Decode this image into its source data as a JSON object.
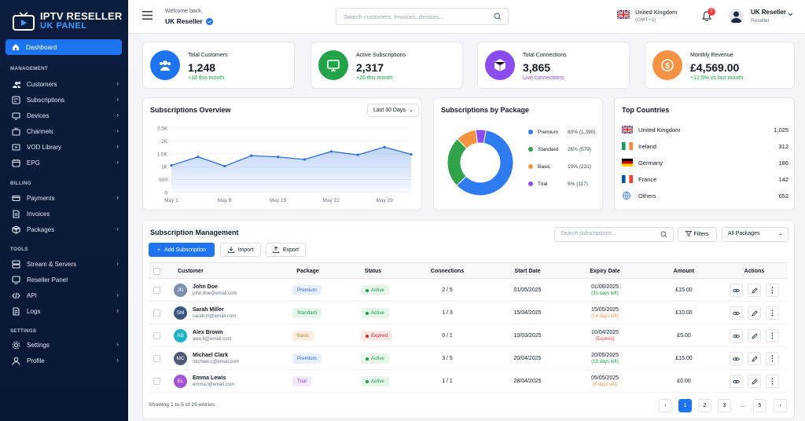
{
  "brand": {
    "line1": "IPTV RESELLER",
    "line2": "UK PANEL"
  },
  "sidebar": {
    "active": "Dashboard",
    "sections": [
      {
        "title": "MANAGEMENT",
        "items": [
          "Customers",
          "Subscriptions",
          "Devices",
          "Channels",
          "VOD Library",
          "EPG"
        ]
      },
      {
        "title": "BILLING",
        "items": [
          "Payments",
          "Invoices",
          "Packages"
        ]
      },
      {
        "title": "TOOLS",
        "items": [
          "Stream & Servers",
          "Reseller Panel",
          "API",
          "Logs"
        ]
      },
      {
        "title": "SETTINGS",
        "items": [
          "Settings",
          "Profile"
        ]
      }
    ]
  },
  "header": {
    "welcome": "Welcome back,",
    "reseller": "UK Reseller",
    "search_placeholder": "Search customers, invoices, devices...",
    "country": "United Kingdom",
    "timezone": "(GMT+1)",
    "notifications": "7",
    "user_name": "UK Reseller",
    "user_role": "Reseller"
  },
  "stats": [
    {
      "label": "Total Customers",
      "value": "1,248",
      "sub": "+18 this month",
      "color": "#1e74f0",
      "sub_color": "#16a34a",
      "icon": "users-icon"
    },
    {
      "label": "Active Subscriptions",
      "value": "2,317",
      "sub": "+26 this month",
      "color": "#22a34a",
      "sub_color": "#16a34a",
      "icon": "monitor-icon"
    },
    {
      "label": "Total Connections",
      "value": "3,865",
      "sub": "Live connections",
      "color": "#8b4cf0",
      "sub_color": "#8b4cf0",
      "icon": "cube-icon"
    },
    {
      "label": "Monthly Revenue",
      "value": "£4,569.00",
      "sub": "+12.5% vs last month",
      "color": "#f59342",
      "sub_color": "#16a34a",
      "icon": "dollar-icon"
    }
  ],
  "overview": {
    "title": "Subscriptions Overview",
    "range": "Last 30 Days"
  },
  "chart_data": {
    "type": "area",
    "x": [
      "May 1",
      "May 4",
      "May 8",
      "May 12",
      "May 15",
      "May 18",
      "May 22",
      "May 25",
      "May 29",
      "May 31"
    ],
    "xticks": [
      "May 1",
      "May 8",
      "May 15",
      "May 22",
      "May 29"
    ],
    "values": [
      1050,
      1380,
      1020,
      1430,
      1380,
      1280,
      1590,
      1460,
      1760,
      1480
    ],
    "yticks": [
      "0",
      "500",
      "1K",
      "1.5K",
      "2K",
      "2.5K"
    ],
    "ylim": [
      0,
      2500
    ],
    "grid": true
  },
  "packages": {
    "title": "Subscriptions by Package",
    "items": [
      {
        "name": "Premium",
        "pct": "60% (1,390)",
        "share": 60,
        "color": "#2f7cf0"
      },
      {
        "name": "Standard",
        "pct": "25% (579)",
        "share": 25,
        "color": "#2fa24a"
      },
      {
        "name": "Basic",
        "pct": "10% (231)",
        "share": 10,
        "color": "#f59342"
      },
      {
        "name": "Trial",
        "pct": "5% (117)",
        "share": 5,
        "color": "#8b4cf0"
      }
    ]
  },
  "countries": {
    "title": "Top Countries",
    "items": [
      {
        "name": "United Kingdom",
        "value": "1,025",
        "flag": "uk-flag"
      },
      {
        "name": "Ireland",
        "value": "312",
        "flag": "ireland-flag"
      },
      {
        "name": "Germany",
        "value": "186",
        "flag": "germany-flag"
      },
      {
        "name": "France",
        "value": "142",
        "flag": "france-flag"
      },
      {
        "name": "Others",
        "value": "652",
        "flag": "globe-icon"
      }
    ]
  },
  "management": {
    "title": "Subscription Management",
    "add": "Add Subscription",
    "import": "Import",
    "export": "Export",
    "search_placeholder": "Search subscriptions...",
    "filters": "Filters",
    "package_filter": "All Packages",
    "columns": [
      "Customer",
      "Package",
      "Status",
      "Connections",
      "Start Date",
      "Expiry Date",
      "Amount",
      "Actions"
    ],
    "rows": [
      {
        "initials": "JD",
        "av": "#7b8fae",
        "name": "John Doe",
        "email": "john.doe@email.com",
        "package": "Premium",
        "status": "Active",
        "conn": "2 / 5",
        "start": "01/05/2025",
        "expiry": "01/06/2025",
        "left": "(31 days left)",
        "left_color": "#16a34a",
        "amount": "£15.00"
      },
      {
        "initials": "SM",
        "av": "#3a5580",
        "name": "Sarah Miller",
        "email": "sarah.m@email.com",
        "package": "Standard",
        "status": "Active",
        "conn": "1 / 3",
        "start": "15/04/2025",
        "expiry": "15/05/2025",
        "left": "(14 days left)",
        "left_color": "#f59342",
        "amount": "£10.00"
      },
      {
        "initials": "AB",
        "av": "#1ab6c6",
        "name": "Alex Brown",
        "email": "alex.b@email.com",
        "package": "Basic",
        "status": "Expired",
        "conn": "0 / 1",
        "start": "10/03/2025",
        "expiry": "10/04/2025",
        "left": "(Expired)",
        "left_color": "#ef4444",
        "amount": "£5.00"
      },
      {
        "initials": "MC",
        "av": "#4f5b78",
        "name": "Michael Clark",
        "email": "michael.c@email.com",
        "package": "Premium",
        "status": "Active",
        "conn": "3 / 5",
        "start": "20/04/2025",
        "expiry": "20/05/2025",
        "left": "(19 days left)",
        "left_color": "#16a34a",
        "amount": "£15.00"
      },
      {
        "initials": "EL",
        "av": "#a553d6",
        "name": "Emma Lewis",
        "email": "emma.l@email.com",
        "package": "Trial",
        "status": "Active",
        "conn": "1 / 1",
        "start": "28/04/2025",
        "expiry": "05/05/2025",
        "left": "(4 days left)",
        "left_color": "#f59342",
        "amount": "£0.00"
      }
    ],
    "showing": "Showing 1 to 5 of 25 entries",
    "pages": [
      "1",
      "2",
      "3",
      "...",
      "5"
    ]
  }
}
